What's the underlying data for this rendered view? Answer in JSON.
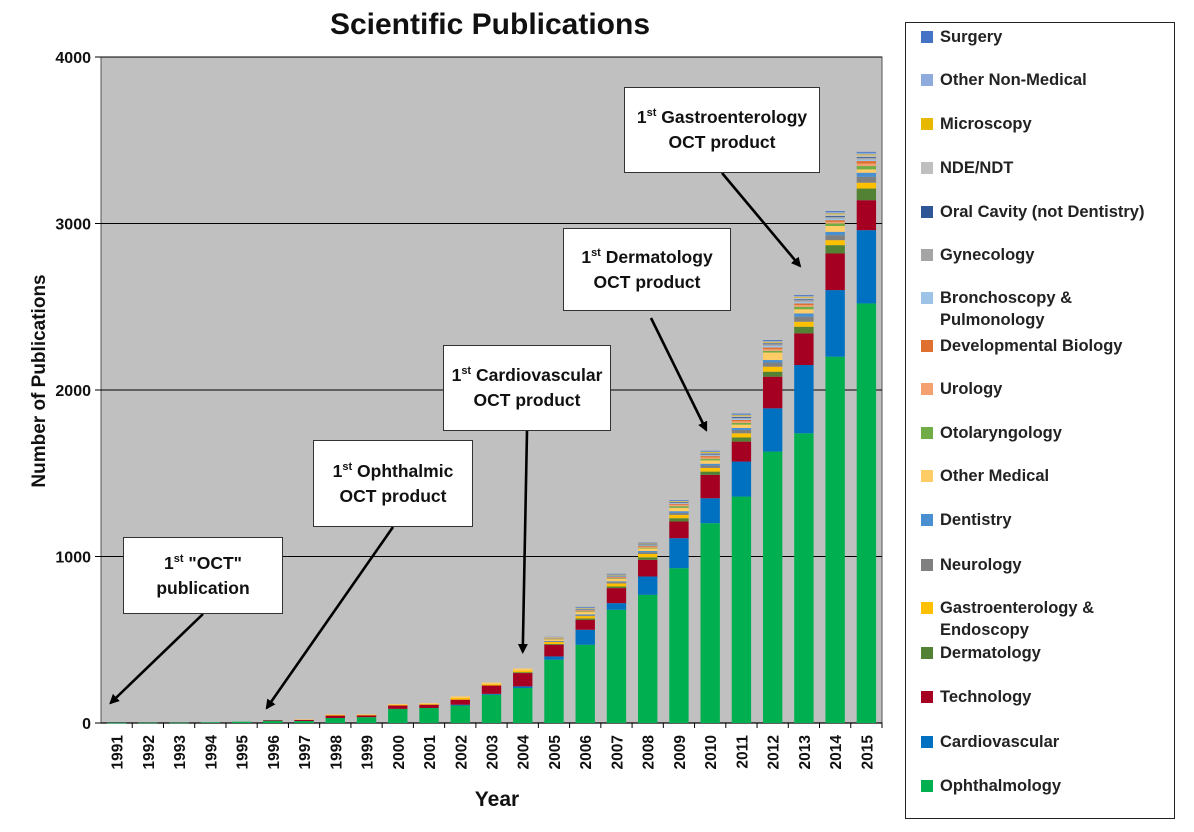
{
  "chart_data": {
    "type": "bar",
    "stacked": true,
    "title": "Scientific Publications",
    "xlabel": "Year",
    "ylabel": "Number of Publications",
    "ylim": [
      0,
      4000
    ],
    "yticks": [
      0,
      1000,
      2000,
      3000,
      4000
    ],
    "grid": true,
    "legend_position": "right",
    "plot_background": "#c0c0c0",
    "categories": [
      "1991",
      "1992",
      "1993",
      "1994",
      "1995",
      "1996",
      "1997",
      "1998",
      "1999",
      "2000",
      "2001",
      "2002",
      "2003",
      "2004",
      "2005",
      "2006",
      "2007",
      "2008",
      "2009",
      "2010",
      "2011",
      "2012",
      "2013",
      "2014",
      "2015"
    ],
    "series": [
      {
        "name": "Ophthalmology",
        "color": "#00b050",
        "values": [
          1,
          2,
          2,
          4,
          8,
          15,
          12,
          30,
          35,
          85,
          90,
          105,
          170,
          210,
          380,
          470,
          680,
          770,
          930,
          1200,
          1360,
          1630,
          1740,
          2200,
          2520
        ]
      },
      {
        "name": "Cardiovascular",
        "color": "#0070c0",
        "values": [
          0,
          0,
          0,
          0,
          0,
          0,
          0,
          0,
          0,
          0,
          0,
          5,
          5,
          10,
          20,
          90,
          40,
          110,
          180,
          150,
          210,
          260,
          410,
          400,
          440
        ]
      },
      {
        "name": "Technology",
        "color": "#a50021",
        "values": [
          0,
          0,
          0,
          0,
          0,
          2,
          8,
          15,
          12,
          20,
          20,
          30,
          50,
          80,
          70,
          60,
          90,
          100,
          100,
          140,
          120,
          190,
          190,
          220,
          180
        ]
      },
      {
        "name": "Dermatology",
        "color": "#548235",
        "values": [
          0,
          0,
          0,
          0,
          0,
          0,
          0,
          0,
          0,
          0,
          0,
          0,
          0,
          5,
          5,
          8,
          10,
          15,
          20,
          20,
          25,
          30,
          40,
          50,
          70
        ]
      },
      {
        "name": "Gastroenterology & Endoscopy",
        "color": "#ffc000",
        "values": [
          0,
          0,
          0,
          0,
          0,
          0,
          0,
          3,
          2,
          4,
          4,
          10,
          8,
          10,
          12,
          14,
          18,
          20,
          20,
          22,
          25,
          30,
          30,
          30,
          35
        ]
      },
      {
        "name": "Neurology",
        "color": "#808080",
        "values": [
          0,
          0,
          0,
          0,
          0,
          0,
          0,
          0,
          0,
          0,
          0,
          0,
          0,
          0,
          3,
          5,
          8,
          10,
          12,
          15,
          20,
          25,
          30,
          30,
          35
        ]
      },
      {
        "name": "Dentistry",
        "color": "#4a90d0",
        "values": [
          0,
          0,
          0,
          0,
          0,
          0,
          0,
          0,
          0,
          0,
          0,
          0,
          0,
          0,
          3,
          5,
          5,
          8,
          10,
          10,
          12,
          15,
          20,
          20,
          25
        ]
      },
      {
        "name": "Other Medical",
        "color": "#ffcc66",
        "values": [
          0,
          0,
          0,
          0,
          0,
          0,
          2,
          3,
          3,
          5,
          5,
          10,
          10,
          12,
          10,
          15,
          15,
          15,
          20,
          20,
          20,
          45,
          25,
          35,
          20
        ]
      },
      {
        "name": "Otolaryngology",
        "color": "#70ad47",
        "values": [
          0,
          0,
          0,
          0,
          0,
          0,
          0,
          0,
          0,
          0,
          0,
          0,
          0,
          0,
          2,
          3,
          3,
          5,
          10,
          10,
          10,
          10,
          15,
          15,
          20
        ]
      },
      {
        "name": "Urology",
        "color": "#f4a070",
        "values": [
          0,
          0,
          0,
          0,
          0,
          0,
          0,
          0,
          0,
          0,
          0,
          0,
          0,
          0,
          2,
          5,
          5,
          5,
          8,
          8,
          10,
          10,
          10,
          10,
          15
        ]
      },
      {
        "name": "Developmental Biology",
        "color": "#e07030",
        "values": [
          0,
          0,
          0,
          0,
          0,
          0,
          0,
          0,
          0,
          0,
          0,
          0,
          0,
          0,
          2,
          3,
          3,
          5,
          5,
          8,
          8,
          10,
          10,
          10,
          15
        ]
      },
      {
        "name": "Bronchoscopy & Pulmonology",
        "color": "#9dc3e6",
        "values": [
          0,
          0,
          0,
          0,
          0,
          0,
          0,
          0,
          0,
          0,
          0,
          0,
          0,
          0,
          2,
          3,
          3,
          3,
          5,
          5,
          8,
          10,
          10,
          10,
          10
        ]
      },
      {
        "name": "Gynecology",
        "color": "#a5a5a5",
        "values": [
          0,
          0,
          0,
          0,
          0,
          0,
          0,
          0,
          0,
          0,
          0,
          0,
          0,
          0,
          2,
          3,
          3,
          3,
          5,
          5,
          5,
          10,
          10,
          10,
          10
        ]
      },
      {
        "name": "Oral Cavity (not Dentistry)",
        "color": "#2f5597",
        "values": [
          0,
          0,
          0,
          0,
          0,
          0,
          0,
          0,
          0,
          0,
          0,
          0,
          0,
          0,
          0,
          2,
          2,
          3,
          3,
          5,
          5,
          5,
          5,
          5,
          5
        ]
      },
      {
        "name": "NDE/NDT",
        "color": "#bfbfbf",
        "values": [
          0,
          0,
          0,
          0,
          0,
          0,
          0,
          0,
          0,
          0,
          0,
          0,
          0,
          0,
          2,
          3,
          3,
          3,
          3,
          5,
          5,
          5,
          10,
          10,
          10
        ]
      },
      {
        "name": "Microscopy",
        "color": "#e6b800",
        "values": [
          0,
          0,
          0,
          0,
          0,
          0,
          0,
          0,
          0,
          0,
          0,
          0,
          0,
          0,
          2,
          3,
          3,
          3,
          3,
          5,
          5,
          5,
          5,
          5,
          5
        ]
      },
      {
        "name": "Other Non-Medical",
        "color": "#8faadc",
        "values": [
          0,
          0,
          0,
          0,
          0,
          0,
          0,
          0,
          0,
          0,
          0,
          0,
          0,
          0,
          2,
          3,
          3,
          3,
          3,
          5,
          5,
          5,
          5,
          10,
          10
        ]
      },
      {
        "name": "Surgery",
        "color": "#4472c4",
        "values": [
          0,
          0,
          0,
          0,
          0,
          0,
          0,
          0,
          0,
          0,
          0,
          0,
          0,
          0,
          0,
          2,
          2,
          2,
          2,
          2,
          5,
          5,
          5,
          5,
          5
        ]
      }
    ],
    "legend_order": [
      "Surgery",
      "Other Non-Medical",
      "Microscopy",
      "NDE/NDT",
      "Oral Cavity (not Dentistry)",
      "Gynecology",
      "Bronchoscopy & Pulmonology",
      "Developmental Biology",
      "Urology",
      "Otolaryngology",
      "Other Medical",
      "Dentistry",
      "Neurology",
      "Gastroenterology & Endoscopy",
      "Dermatology",
      "Technology",
      "Cardiovascular",
      "Ophthalmology"
    ],
    "annotations": [
      {
        "id": "oct-publication",
        "prefix": "1",
        "sup": "st",
        "line1": " \"OCT\"",
        "line2": "publication",
        "target_year": "1991"
      },
      {
        "id": "ophthalmic-product",
        "prefix": "1",
        "sup": "st",
        "line1": " Ophthalmic",
        "line2": "OCT product",
        "target_year": "1996"
      },
      {
        "id": "cardiovascular-product",
        "prefix": "1",
        "sup": "st",
        "line1": " Cardiovascular",
        "line2": "OCT product",
        "target_year": "2004"
      },
      {
        "id": "dermatology-product",
        "prefix": "1",
        "sup": "st",
        "line1": " Dermatology",
        "line2": "OCT product",
        "target_year": "2010"
      },
      {
        "id": "gastroenterology-product",
        "prefix": "1",
        "sup": "st",
        "line1": " Gastroenterology",
        "line2": "OCT product",
        "target_year": "2013"
      }
    ]
  }
}
